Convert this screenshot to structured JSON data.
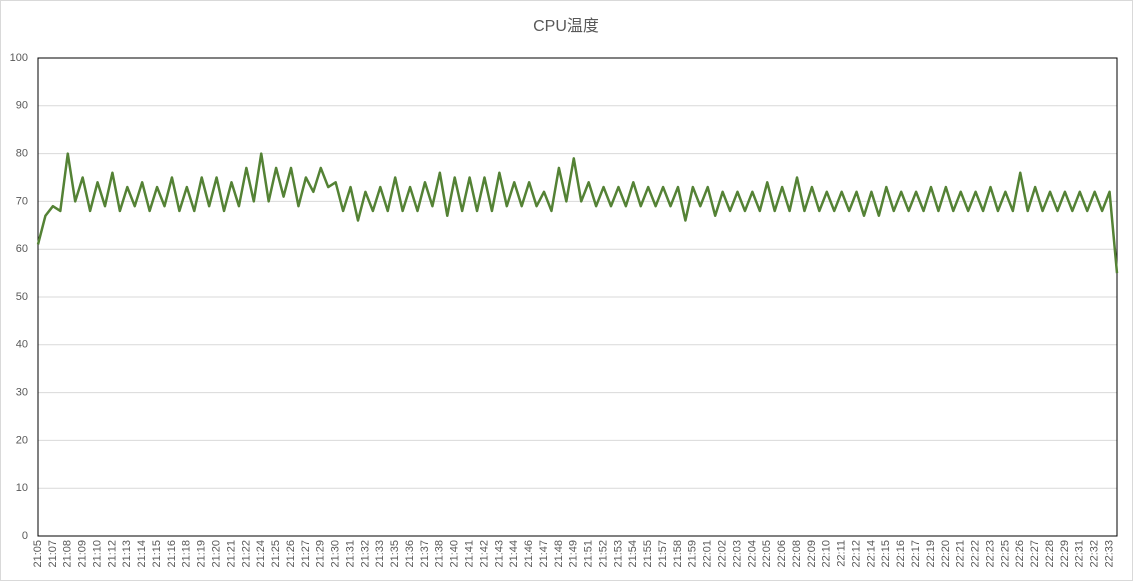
{
  "chart_data": {
    "type": "line",
    "title": "CPU温度",
    "categories": [
      "21:05",
      null,
      "21:07",
      null,
      "21:08",
      null,
      "21:09",
      null,
      "21:10",
      null,
      "21:12",
      null,
      "21:13",
      null,
      "21:14",
      null,
      "21:15",
      null,
      "21:16",
      null,
      "21:18",
      null,
      "21:19",
      null,
      "21:20",
      null,
      "21:21",
      null,
      "21:22",
      null,
      "21:24",
      null,
      "21:25",
      null,
      "21:26",
      null,
      "21:27",
      null,
      "21:29",
      null,
      "21:30",
      null,
      "21:31",
      null,
      "21:32",
      null,
      "21:33",
      null,
      "21:35",
      null,
      "21:36",
      null,
      "21:37",
      null,
      "21:38",
      null,
      "21:40",
      null,
      "21:41",
      null,
      "21:42",
      null,
      "21:43",
      null,
      "21:44",
      null,
      "21:46",
      null,
      "21:47",
      null,
      "21:48",
      null,
      "21:49",
      null,
      "21:51",
      null,
      "21:52",
      null,
      "21:53",
      null,
      "21:54",
      null,
      "21:55",
      null,
      "21:57",
      null,
      "21:58",
      null,
      "21:59",
      null,
      "22:01",
      null,
      "22:02",
      null,
      "22:03",
      null,
      "22:04",
      null,
      "22:05",
      null,
      "22:06",
      null,
      "22:08",
      null,
      "22:09",
      null,
      "22:10",
      null,
      "22:11",
      null,
      "22:12",
      null,
      "22:14",
      null,
      "22:15",
      null,
      "22:16",
      null,
      "22:17",
      null,
      "22:19",
      null,
      "22:20",
      null,
      "22:21",
      null,
      "22:22",
      null,
      "22:23",
      null,
      "22:25",
      null,
      "22:26",
      null,
      "22:27",
      null,
      "22:28",
      null,
      "22:29",
      null,
      "22:31",
      null,
      "22:32",
      null,
      "22:33",
      null
    ],
    "values": [
      61,
      67,
      69,
      68,
      80,
      70,
      75,
      68,
      74,
      69,
      76,
      68,
      73,
      69,
      74,
      68,
      73,
      69,
      75,
      68,
      73,
      68,
      75,
      69,
      75,
      68,
      74,
      69,
      77,
      70,
      80,
      70,
      77,
      71,
      77,
      69,
      75,
      72,
      77,
      73,
      74,
      68,
      73,
      66,
      72,
      68,
      73,
      68,
      75,
      68,
      73,
      68,
      74,
      69,
      76,
      67,
      75,
      68,
      75,
      68,
      75,
      68,
      76,
      69,
      74,
      69,
      74,
      69,
      72,
      68,
      77,
      70,
      79,
      70,
      74,
      69,
      73,
      69,
      73,
      69,
      74,
      69,
      73,
      69,
      73,
      69,
      73,
      66,
      73,
      69,
      73,
      67,
      72,
      68,
      72,
      68,
      72,
      68,
      74,
      68,
      73,
      68,
      75,
      68,
      73,
      68,
      72,
      68,
      72,
      68,
      72,
      67,
      72,
      67,
      73,
      68,
      72,
      68,
      72,
      68,
      73,
      68,
      73,
      68,
      72,
      68,
      72,
      68,
      73,
      68,
      72,
      68,
      76,
      68,
      73,
      68,
      72,
      68,
      72,
      68,
      72,
      68,
      72,
      68,
      72,
      55
    ],
    "color": "#548235",
    "ylim": [
      0,
      100
    ],
    "yticks": [
      0,
      10,
      20,
      30,
      40,
      50,
      60,
      70,
      80,
      90,
      100
    ],
    "grid": true
  }
}
